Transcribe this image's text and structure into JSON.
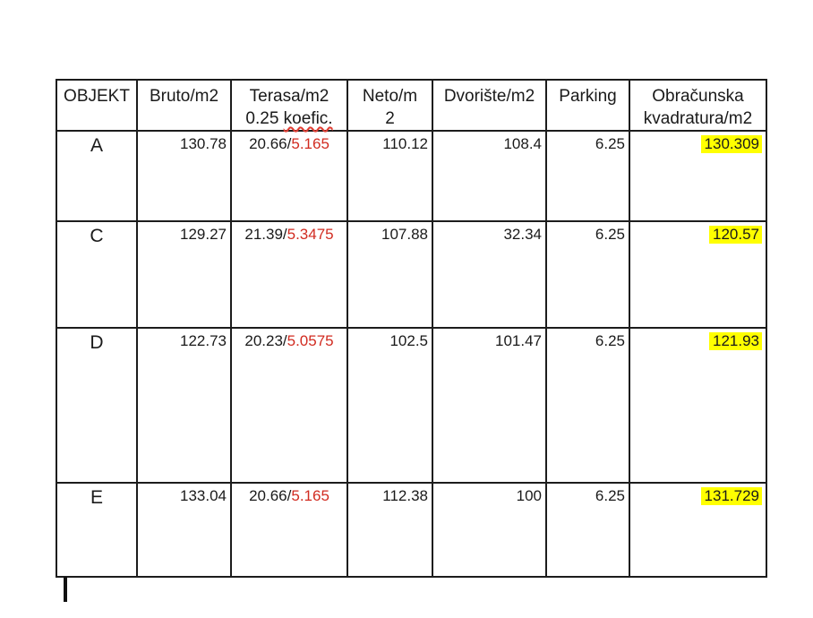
{
  "colors": {
    "table_border": "#1c1c1c",
    "coefficient_red": "#d12b20",
    "spellcheck_squiggle": "#e03c31",
    "highlight_yellow": "#ffff00",
    "background": "#ffffff"
  },
  "table": {
    "header": {
      "objekt": "OBJEKT",
      "bruto": "Bruto/m2",
      "terasa_line1": "Terasa/m2",
      "terasa_line2_prefix": "0.25 ",
      "terasa_line2_word": "koefic.",
      "neto_line1": "Neto/m",
      "neto_line2": "2",
      "dvoriste": "Dvorište/m2",
      "parking": "Parking",
      "obracunska_line1": "Obračunska",
      "obracunska_line2": "kvadratura/m2"
    },
    "rows": [
      {
        "objekt": "A",
        "bruto": "130.78",
        "terasa_main": "20.66/",
        "terasa_koef": "5.165",
        "neto": "110.12",
        "dvoriste": "108.4",
        "parking": "6.25",
        "obracunska": "130.309"
      },
      {
        "objekt": "C",
        "bruto": "129.27",
        "terasa_main": "21.39/",
        "terasa_koef": "5.3475",
        "neto": "107.88",
        "dvoriste": "32.34",
        "parking": "6.25",
        "obracunska": "120.57"
      },
      {
        "objekt": "D",
        "bruto": "122.73",
        "terasa_main": "20.23/",
        "terasa_koef": "5.0575",
        "neto": "102.5",
        "dvoriste": "101.47",
        "parking": "6.25",
        "obracunska": "121.93"
      },
      {
        "objekt": "E",
        "bruto": "133.04",
        "terasa_main": "20.66/",
        "terasa_koef": "5.165",
        "neto": "112.38",
        "dvoriste": "100",
        "parking": "6.25",
        "obracunska": "131.729"
      }
    ]
  }
}
